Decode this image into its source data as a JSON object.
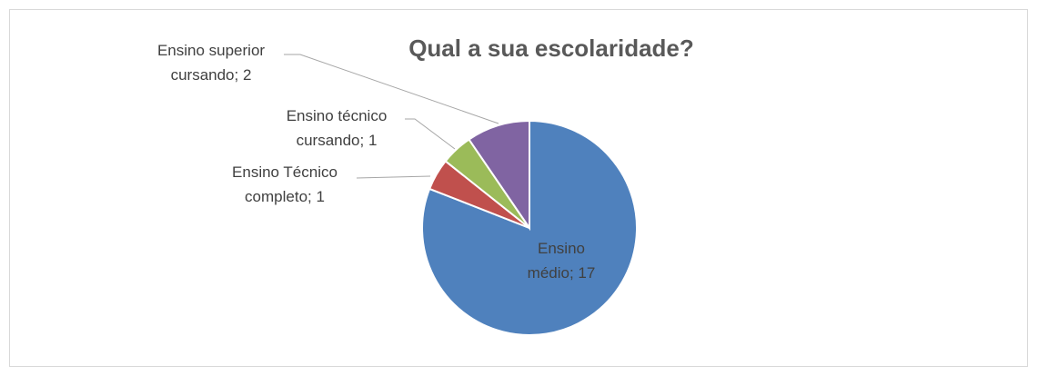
{
  "chart_data": {
    "type": "pie",
    "title": "Qual a sua escolaridade?",
    "values": [
      17,
      1,
      1,
      2
    ],
    "value_labels": [
      "Ensino médio; 17",
      "Ensino Técnico completo; 1",
      "Ensino técnico cursando; 1",
      "Ensino superior cursando; 2"
    ],
    "colors": [
      "#4f81bd",
      "#c0504d",
      "#9bbb59",
      "#8064a2"
    ]
  }
}
